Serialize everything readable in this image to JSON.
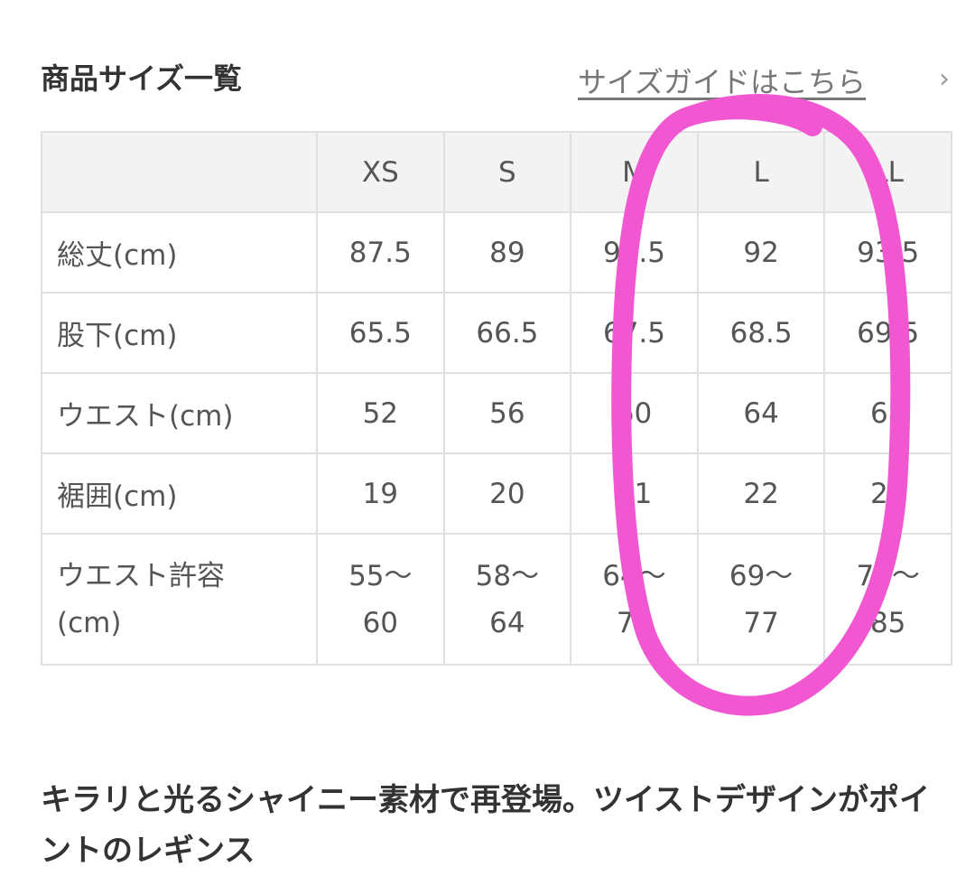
{
  "header": {
    "title": "商品サイズ一覧",
    "guide_link": "サイズガイドはこちら",
    "chevron": "›"
  },
  "table": {
    "columns": [
      "",
      "XS",
      "S",
      "M",
      "L",
      "LL"
    ],
    "rows": [
      {
        "label": "総丈(cm)",
        "values": [
          "87.5",
          "89",
          "90.5",
          "92",
          "93.5"
        ]
      },
      {
        "label": "股下(cm)",
        "values": [
          "65.5",
          "66.5",
          "67.5",
          "68.5",
          "69.5"
        ]
      },
      {
        "label": "ウエスト(cm)",
        "values": [
          "52",
          "56",
          "60",
          "64",
          "68"
        ]
      },
      {
        "label": "裾囲(cm)",
        "values": [
          "19",
          "20",
          "21",
          "22",
          "23"
        ]
      },
      {
        "label": "ウエスト許容(cm)",
        "values": [
          "55〜60",
          "58〜64",
          "64〜70",
          "69〜77",
          "77〜85"
        ]
      }
    ]
  },
  "description": "キラリと光るシャイニー素材で再登場。ツイストデザインがポイントのレギンス",
  "annotation": {
    "color": "#f257d2",
    "shape": "hand-drawn-circle",
    "target_columns": [
      "L",
      "LL"
    ]
  }
}
